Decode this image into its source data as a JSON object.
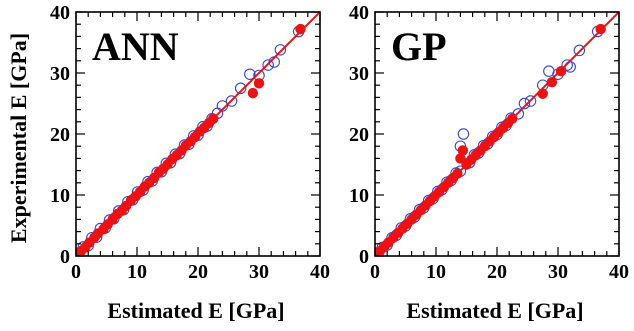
{
  "colors": {
    "train": "#3344dd",
    "test": "#ee1111",
    "diag": "#ee1111",
    "frame": "#000000"
  },
  "chart_data": [
    {
      "type": "scatter",
      "title": "ANN",
      "xlabel": "Estimated E [GPa]",
      "ylabel": "Experimental E [GPa]",
      "xlim": [
        0,
        40
      ],
      "ylim": [
        0,
        40
      ],
      "xticks": [
        "0",
        "10",
        "20",
        "30",
        "40"
      ],
      "yticks": [
        "0",
        "10",
        "20",
        "30",
        "40"
      ],
      "grid": false,
      "diagonal": [
        [
          0,
          0
        ],
        [
          40,
          40
        ]
      ],
      "series": [
        {
          "marker": "open-circle",
          "points": [
            [
              0.5,
              0.4
            ],
            [
              1.2,
              1.5
            ],
            [
              2.0,
              1.7
            ],
            [
              2.6,
              3.0
            ],
            [
              3.4,
              3.1
            ],
            [
              4.0,
              4.5
            ],
            [
              4.8,
              4.6
            ],
            [
              5.5,
              5.9
            ],
            [
              6.2,
              6.1
            ],
            [
              7.0,
              7.4
            ],
            [
              7.8,
              7.6
            ],
            [
              8.5,
              8.9
            ],
            [
              9.3,
              9.2
            ],
            [
              10.1,
              10.5
            ],
            [
              11.0,
              10.8
            ],
            [
              11.8,
              12.2
            ],
            [
              12.5,
              12.3
            ],
            [
              13.3,
              13.7
            ],
            [
              14.0,
              13.8
            ],
            [
              14.8,
              15.2
            ],
            [
              15.5,
              15.3
            ],
            [
              16.3,
              16.7
            ],
            [
              17.0,
              16.8
            ],
            [
              17.8,
              18.2
            ],
            [
              18.5,
              18.3
            ],
            [
              19.3,
              19.7
            ],
            [
              20.0,
              19.8
            ],
            [
              20.8,
              21.2
            ],
            [
              21.5,
              21.3
            ],
            [
              22.3,
              22.5
            ],
            [
              23.2,
              23.4
            ],
            [
              24.0,
              24.6
            ],
            [
              25.5,
              25.4
            ],
            [
              27.0,
              27.5
            ],
            [
              28.5,
              29.8
            ],
            [
              30.0,
              29.6
            ],
            [
              31.5,
              31.3
            ],
            [
              32.5,
              31.8
            ],
            [
              33.5,
              33.8
            ],
            [
              36.5,
              36.8
            ]
          ]
        },
        {
          "marker": "filled-circle",
          "points": [
            [
              0.8,
              0.8
            ],
            [
              1.5,
              1.4
            ],
            [
              2.2,
              2.2
            ],
            [
              3.0,
              3.0
            ],
            [
              3.6,
              3.7
            ],
            [
              4.5,
              4.4
            ],
            [
              5.2,
              5.2
            ],
            [
              6.0,
              6.0
            ],
            [
              6.8,
              6.9
            ],
            [
              7.5,
              7.4
            ],
            [
              8.2,
              8.2
            ],
            [
              9.0,
              9.1
            ],
            [
              9.8,
              9.8
            ],
            [
              10.5,
              10.5
            ],
            [
              11.3,
              11.4
            ],
            [
              12.0,
              12.0
            ],
            [
              12.8,
              12.8
            ],
            [
              13.6,
              13.7
            ],
            [
              14.3,
              14.3
            ],
            [
              15.0,
              15.0
            ],
            [
              15.8,
              15.9
            ],
            [
              16.5,
              16.5
            ],
            [
              17.3,
              17.3
            ],
            [
              18.0,
              18.1
            ],
            [
              18.8,
              18.8
            ],
            [
              19.5,
              19.5
            ],
            [
              20.3,
              20.4
            ],
            [
              21.0,
              21.0
            ],
            [
              21.8,
              21.8
            ],
            [
              22.5,
              22.5
            ],
            [
              29.0,
              26.7
            ],
            [
              30.0,
              28.3
            ],
            [
              36.8,
              37.2
            ]
          ]
        }
      ]
    },
    {
      "type": "scatter",
      "title": "GP",
      "xlabel": "Estimated E [GPa]",
      "ylabel": "",
      "xlim": [
        0,
        40
      ],
      "ylim": [
        0,
        40
      ],
      "xticks": [
        "0",
        "10",
        "20",
        "30",
        "40"
      ],
      "yticks": [
        "0",
        "10",
        "20",
        "30",
        "40"
      ],
      "grid": false,
      "diagonal": [
        [
          0,
          0
        ],
        [
          40,
          40
        ]
      ],
      "series": [
        {
          "marker": "open-circle",
          "points": [
            [
              0.5,
              0.5
            ],
            [
              1.2,
              1.4
            ],
            [
              2.0,
              1.8
            ],
            [
              2.8,
              3.0
            ],
            [
              3.5,
              3.4
            ],
            [
              4.3,
              4.6
            ],
            [
              5.0,
              4.9
            ],
            [
              5.8,
              6.1
            ],
            [
              6.5,
              6.4
            ],
            [
              7.3,
              7.6
            ],
            [
              8.0,
              7.9
            ],
            [
              8.8,
              9.1
            ],
            [
              9.5,
              9.4
            ],
            [
              10.3,
              10.6
            ],
            [
              11.0,
              10.9
            ],
            [
              11.8,
              12.1
            ],
            [
              12.5,
              12.4
            ],
            [
              13.3,
              13.6
            ],
            [
              14.0,
              13.9
            ],
            [
              14.5,
              20.0
            ],
            [
              14.0,
              18.0
            ],
            [
              15.5,
              15.3
            ],
            [
              16.3,
              16.6
            ],
            [
              17.0,
              16.9
            ],
            [
              17.8,
              18.1
            ],
            [
              18.5,
              18.4
            ],
            [
              19.3,
              19.6
            ],
            [
              20.0,
              19.9
            ],
            [
              20.8,
              21.1
            ],
            [
              21.5,
              21.4
            ],
            [
              22.3,
              22.6
            ],
            [
              23.5,
              23.3
            ],
            [
              24.5,
              25.0
            ],
            [
              25.5,
              25.4
            ],
            [
              27.5,
              28.0
            ],
            [
              28.5,
              30.3
            ],
            [
              30.0,
              29.8
            ],
            [
              31.5,
              31.3
            ],
            [
              32.0,
              31.0
            ],
            [
              33.5,
              33.7
            ],
            [
              36.5,
              36.8
            ]
          ]
        },
        {
          "marker": "filled-circle",
          "points": [
            [
              0.8,
              0.8
            ],
            [
              1.5,
              1.5
            ],
            [
              2.2,
              2.2
            ],
            [
              3.0,
              3.0
            ],
            [
              3.8,
              3.8
            ],
            [
              4.5,
              4.5
            ],
            [
              5.3,
              5.3
            ],
            [
              6.0,
              6.0
            ],
            [
              6.8,
              6.8
            ],
            [
              7.5,
              7.5
            ],
            [
              8.3,
              8.3
            ],
            [
              9.0,
              9.0
            ],
            [
              9.8,
              9.8
            ],
            [
              10.5,
              10.5
            ],
            [
              11.3,
              11.3
            ],
            [
              12.0,
              12.0
            ],
            [
              12.8,
              12.8
            ],
            [
              13.5,
              13.5
            ],
            [
              14.0,
              16.0
            ],
            [
              14.4,
              17.3
            ],
            [
              15.0,
              15.0
            ],
            [
              15.8,
              15.8
            ],
            [
              16.5,
              16.5
            ],
            [
              17.3,
              17.3
            ],
            [
              18.0,
              18.0
            ],
            [
              18.8,
              18.8
            ],
            [
              19.5,
              19.5
            ],
            [
              20.3,
              20.3
            ],
            [
              21.0,
              21.0
            ],
            [
              21.8,
              21.8
            ],
            [
              22.5,
              22.5
            ],
            [
              27.5,
              26.6
            ],
            [
              29.0,
              28.5
            ],
            [
              30.5,
              30.3
            ],
            [
              37.0,
              37.2
            ]
          ]
        }
      ]
    }
  ]
}
